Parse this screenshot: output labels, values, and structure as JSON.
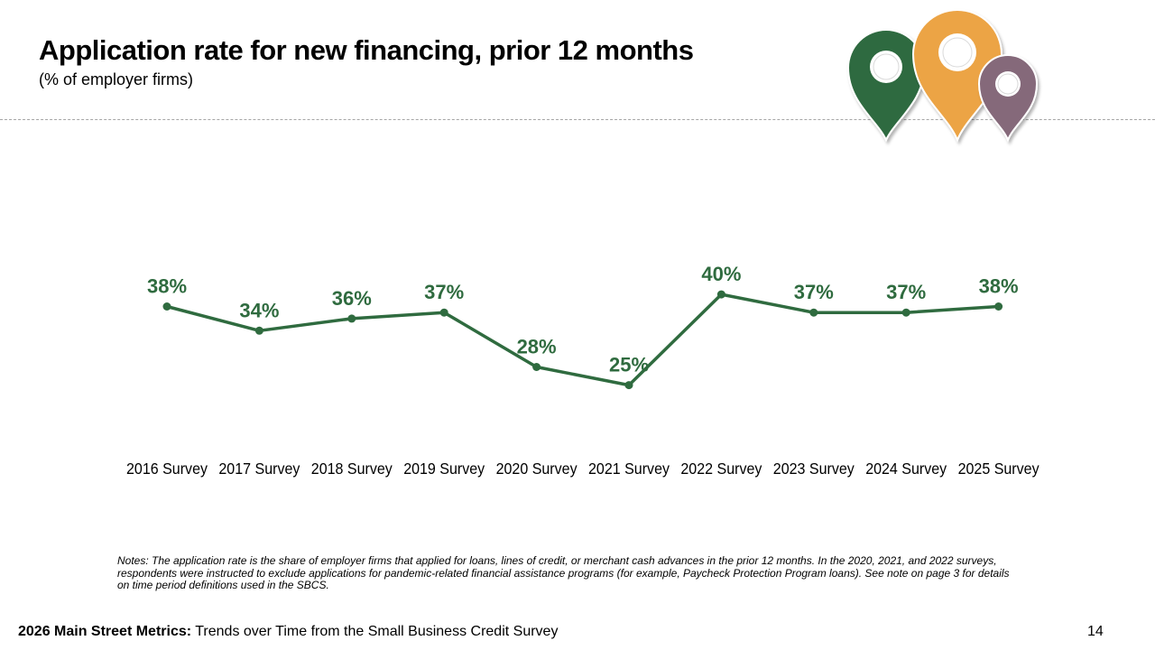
{
  "header": {
    "title": "Application rate for new financing, prior 12 months",
    "subtitle": "(% of employer firms)"
  },
  "chart_data": {
    "type": "line",
    "title": "Application rate for new financing, prior 12 months",
    "subtitle": "(% of employer firms)",
    "xlabel": "",
    "ylabel": "",
    "categories": [
      "2016 Survey",
      "2017 Survey",
      "2018 Survey",
      "2019 Survey",
      "2020 Survey",
      "2021 Survey",
      "2022 Survey",
      "2023 Survey",
      "2024 Survey",
      "2025 Survey"
    ],
    "series": [
      {
        "name": "Application rate",
        "values": [
          38,
          34,
          36,
          37,
          28,
          25,
          40,
          37,
          37,
          38
        ],
        "labels": [
          "38%",
          "34%",
          "36%",
          "37%",
          "28%",
          "25%",
          "40%",
          "37%",
          "37%",
          "38%"
        ],
        "color": "#2f6b3f"
      }
    ],
    "ylim": [
      0,
      100
    ],
    "grid": false,
    "legend": "none"
  },
  "notes": "Notes: The application rate is the share of employer firms that applied for loans, lines of credit, or merchant cash advances in the prior 12 months. In the 2020, 2021, and 2022 surveys, respondents were instructed to exclude applications for pandemic-related financial assistance programs (for example, Paycheck Protection Program loans). See note on page 3 for details on time period definitions used in the SBCS.",
  "footer": {
    "bold": "2026 Main Street Metrics:",
    "text": " Trends over Time from the Small Business Credit Survey",
    "page_number": "14"
  },
  "colors": {
    "line": "#2f6b3f",
    "pin_green": "#2f6b3f",
    "pin_orange": "#eca445",
    "pin_purple": "#85697a"
  }
}
